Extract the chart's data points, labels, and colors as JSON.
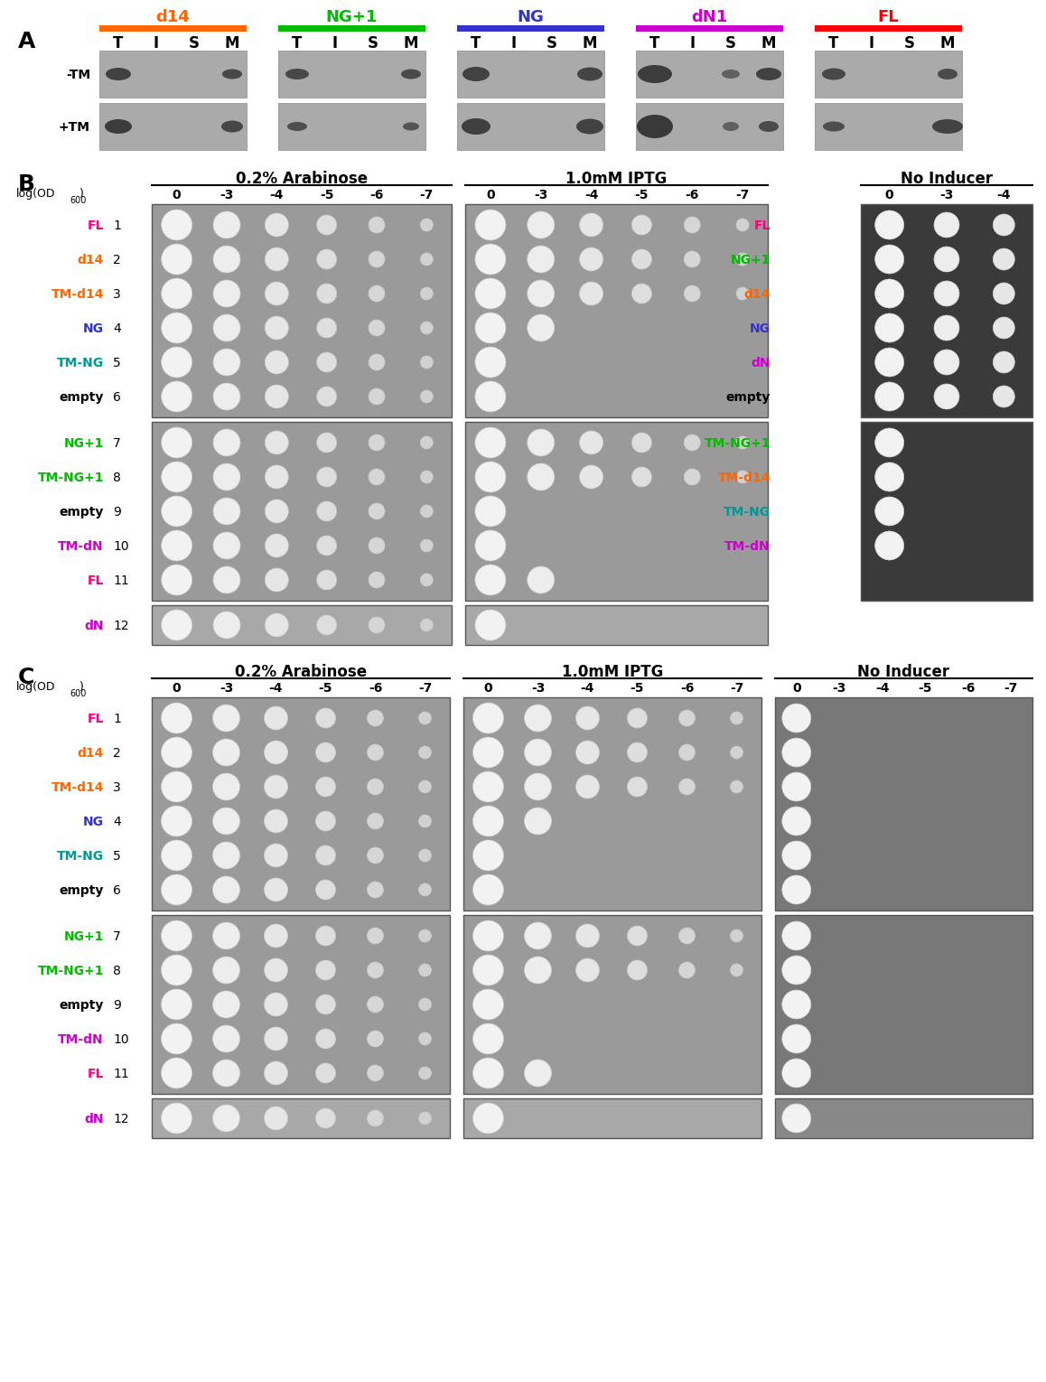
{
  "panel_A": {
    "label": "A",
    "groups": [
      "d14",
      "NG+1",
      "NG",
      "dN1",
      "FL"
    ],
    "group_colors": [
      "#FF6600",
      "#00BB00",
      "#3333CC",
      "#CC00CC",
      "#FF0000"
    ],
    "col_labels": [
      "T",
      "I",
      "S",
      "M"
    ],
    "row_labels": [
      "-TM",
      "+TM"
    ],
    "gel_bg": "#AAAAAA",
    "band_color": "#303030"
  },
  "panel_B": {
    "label": "B",
    "section_titles": [
      "0.2% Arabinose",
      "1.0mM IPTG",
      "No Inducer"
    ],
    "arabinose_cols": [
      "0",
      "-3",
      "-4",
      "-5",
      "-6",
      "-7"
    ],
    "iptg_cols": [
      "0",
      "-3",
      "-4",
      "-5",
      "-6",
      "-7"
    ],
    "no_inducer_cols_top": [
      "0",
      "-3",
      "-4"
    ],
    "rows_top_left": [
      {
        "num": "1",
        "label": "FL",
        "color": "#FF0080"
      },
      {
        "num": "2",
        "label": "d14",
        "color": "#FF6600"
      },
      {
        "num": "3",
        "label": "TM-d14",
        "color": "#FF6600"
      },
      {
        "num": "4",
        "label": "NG",
        "color": "#3333CC"
      },
      {
        "num": "5",
        "label": "TM-NG",
        "color": "#009999"
      },
      {
        "num": "6",
        "label": "empty",
        "color": "#000000"
      }
    ],
    "rows_bot_left": [
      {
        "num": "7",
        "label": "NG+1",
        "color": "#00BB00"
      },
      {
        "num": "8",
        "label": "TM-NG+1",
        "color": "#00BB00"
      },
      {
        "num": "9",
        "label": "empty",
        "color": "#000000"
      },
      {
        "num": "10",
        "label": "TM-dN",
        "color": "#CC00CC"
      },
      {
        "num": "11",
        "label": "FL",
        "color": "#FF0080"
      }
    ],
    "row_12": {
      "num": "12",
      "label": "dN",
      "color": "#CC00CC"
    },
    "rows_no_inducer_top": [
      {
        "label": "FL",
        "color": "#FF0080"
      },
      {
        "label": "NG+1",
        "color": "#00BB00"
      },
      {
        "label": "d14",
        "color": "#FF6600"
      },
      {
        "label": "NG",
        "color": "#3333CC"
      },
      {
        "label": "dN",
        "color": "#CC00CC"
      },
      {
        "label": "empty",
        "color": "#000000"
      }
    ],
    "rows_no_inducer_bot": [
      {
        "label": "TM-NG+1",
        "color": "#00BB00"
      },
      {
        "label": "TM-d14",
        "color": "#FF6600"
      },
      {
        "label": "TM-NG",
        "color": "#009999"
      },
      {
        "label": "TM-dN",
        "color": "#CC00CC"
      }
    ]
  },
  "panel_C": {
    "label": "C",
    "section_titles": [
      "0.2% Arabinose",
      "1.0mM IPTG",
      "No Inducer"
    ],
    "arabinose_cols": [
      "0",
      "-3",
      "-4",
      "-5",
      "-6",
      "-7"
    ],
    "iptg_cols": [
      "0",
      "-3",
      "-4",
      "-5",
      "-6",
      "-7"
    ],
    "no_inducer_cols": [
      "0",
      "-3",
      "-4",
      "-5",
      "-6",
      "-7"
    ],
    "rows_top": [
      {
        "num": "1",
        "label": "FL",
        "color": "#FF0080"
      },
      {
        "num": "2",
        "label": "d14",
        "color": "#FF6600"
      },
      {
        "num": "3",
        "label": "TM-d14",
        "color": "#FF6600"
      },
      {
        "num": "4",
        "label": "NG",
        "color": "#3333CC"
      },
      {
        "num": "5",
        "label": "TM-NG",
        "color": "#009999"
      },
      {
        "num": "6",
        "label": "empty",
        "color": "#000000"
      }
    ],
    "rows_bot": [
      {
        "num": "7",
        "label": "NG+1",
        "color": "#00BB00"
      },
      {
        "num": "8",
        "label": "TM-NG+1",
        "color": "#00BB00"
      },
      {
        "num": "9",
        "label": "empty",
        "color": "#000000"
      },
      {
        "num": "10",
        "label": "TM-dN",
        "color": "#CC00CC"
      },
      {
        "num": "11",
        "label": "FL",
        "color": "#FF0080"
      }
    ],
    "row_12": {
      "num": "12",
      "label": "dN",
      "color": "#CC00CC"
    }
  }
}
